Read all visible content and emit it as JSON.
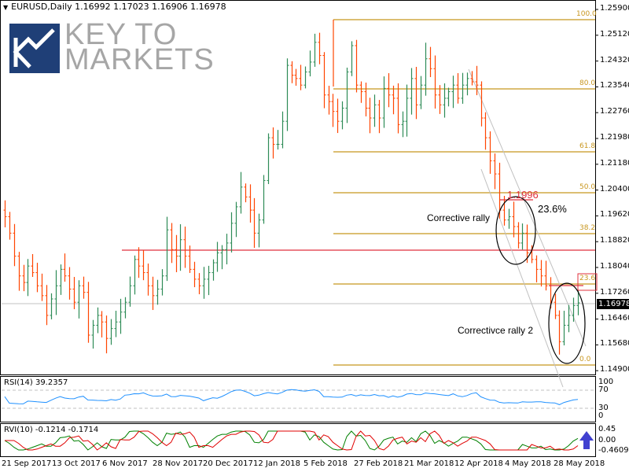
{
  "header": {
    "symbol_timeframe": "EURUSD,Daily",
    "open": "1.16992",
    "high": "1.17023",
    "low": "1.16906",
    "close": "1.16978"
  },
  "logo": {
    "line1": "KEY TO",
    "line2": "MARKETS",
    "box_color": "#1f3f77",
    "text_color": "#a6a6a6"
  },
  "price_axis": {
    "ticks": [
      "1.25900",
      "1.25120",
      "1.24320",
      "1.23540",
      "1.22760",
      "1.21980",
      "1.21180",
      "1.20400",
      "1.19620",
      "1.18820",
      "1.18040",
      "1.17260",
      "1.16460",
      "1.15680",
      "1.14900"
    ],
    "current_price": "1.16978"
  },
  "fibonacci": {
    "levels": [
      {
        "label": "100.0",
        "price": 1.2555
      },
      {
        "label": "80.0",
        "price": 1.2354
      },
      {
        "label": "61.8",
        "price": 1.217
      },
      {
        "label": "50.0",
        "price": 1.2052
      },
      {
        "label": "38.2",
        "price": 1.1935
      },
      {
        "label": "23.6",
        "price": 1.1786
      },
      {
        "label": "0.0",
        "price": 1.151
      }
    ],
    "color": "#c8961e"
  },
  "annotations": {
    "high_label": "1.1996",
    "pct_label": "23.6%",
    "rally1": "Corrective rally",
    "rally2": "Correctivce rally 2",
    "fib_box_label": "23.6"
  },
  "colors": {
    "up": "#2e8b57",
    "down": "#ff4500",
    "support": "#e0303e",
    "fib": "#c8961e",
    "rsi": "#1e90ff",
    "rvi_main": "#008000",
    "rvi_signal": "#e00000",
    "arrow": "#4040d0"
  },
  "rsi": {
    "label": "RSI(14) 39.2357",
    "levels": [
      "100",
      "70",
      "30",
      "0"
    ]
  },
  "rvi": {
    "label": "RVI(10) -0.1214 -0.1714",
    "levels": [
      "0.45",
      "0.00",
      "-0.4609"
    ]
  },
  "time_axis": [
    "21 Sep 2017",
    "13 Oct 2017",
    "6 Nov 2017",
    "28 Nov 2017",
    "20 Dec 2017",
    "12 Jan 2018",
    "5 Feb 2018",
    "27 Feb 2018",
    "21 Mar 2018",
    "12 Apr 2018",
    "4 May 2018",
    "28 May 2018"
  ],
  "chart_data": {
    "type": "ohlc",
    "title": "EURUSD, Daily",
    "ohlc_last": {
      "open": 1.16992,
      "high": 1.17023,
      "low": 1.16906,
      "close": 1.16978
    },
    "ylim": [
      1.146,
      1.262
    ],
    "x_ticks": [
      "21 Sep 2017",
      "13 Oct 2017",
      "6 Nov 2017",
      "28 Nov 2017",
      "20 Dec 2017",
      "12 Jan 2018",
      "5 Feb 2018",
      "27 Feb 2018",
      "21 Mar 2018",
      "12 Apr 2018",
      "4 May 2018",
      "28 May 2018"
    ],
    "y_ticks": [
      1.259,
      1.2512,
      1.2432,
      1.2354,
      1.2276,
      1.2198,
      1.2118,
      1.204,
      1.1962,
      1.1882,
      1.1804,
      1.1726,
      1.1646,
      1.1568,
      1.149
    ],
    "approx_closes": [
      1.196,
      1.191,
      1.184,
      1.178,
      1.176,
      1.181,
      1.179,
      1.175,
      1.172,
      1.166,
      1.171,
      1.175,
      1.18,
      1.178,
      1.174,
      1.17,
      1.175,
      1.173,
      1.16,
      1.163,
      1.166,
      1.164,
      1.159,
      1.162,
      1.164,
      1.167,
      1.17,
      1.175,
      1.183,
      1.181,
      1.179,
      1.175,
      1.172,
      1.174,
      1.178,
      1.192,
      1.186,
      1.184,
      1.189,
      1.184,
      1.18,
      1.177,
      1.175,
      1.177,
      1.179,
      1.182,
      1.185,
      1.186,
      1.188,
      1.194,
      1.199,
      1.205,
      1.202,
      1.198,
      1.191,
      1.195,
      1.207,
      1.22,
      1.218,
      1.218,
      1.225,
      1.242,
      1.239,
      1.238,
      1.236,
      1.24,
      1.243,
      1.249,
      1.245,
      1.233,
      1.231,
      1.228,
      1.225,
      1.229,
      1.24,
      1.248,
      1.236,
      1.234,
      1.229,
      1.226,
      1.23,
      1.226,
      1.235,
      1.233,
      1.232,
      1.224,
      1.225,
      1.232,
      1.238,
      1.23,
      1.236,
      1.244,
      1.241,
      1.233,
      1.23,
      1.232,
      1.234,
      1.236,
      1.232,
      1.236,
      1.238,
      1.237,
      1.236,
      1.226,
      1.22,
      1.213,
      1.209,
      1.198,
      1.195,
      1.196,
      1.193,
      1.188,
      1.191,
      1.185,
      1.183,
      1.18,
      1.178,
      1.175,
      1.17,
      1.166,
      1.158,
      1.163,
      1.166,
      1.169,
      1.1698
    ],
    "fib_retracement": {
      "100.0": 1.2555,
      "80.0": 1.2354,
      "61.8": 1.217,
      "50.0": 1.2052,
      "38.2": 1.1935,
      "23.6": 1.1786,
      "0.0": 1.151
    },
    "support_line": 1.1852,
    "current_price_line": 1.16978,
    "annotations": [
      "1.1996",
      "23.6%",
      "Corrective rally",
      "Correctivce rally 2"
    ],
    "indicators": [
      {
        "name": "RSI(14)",
        "value": 39.2357,
        "levels": [
          100,
          70,
          30,
          0
        ]
      },
      {
        "name": "RVI(10)",
        "values": [
          -0.1214,
          -0.1714
        ],
        "range": [
          -0.4609,
          0.45
        ]
      }
    ]
  }
}
